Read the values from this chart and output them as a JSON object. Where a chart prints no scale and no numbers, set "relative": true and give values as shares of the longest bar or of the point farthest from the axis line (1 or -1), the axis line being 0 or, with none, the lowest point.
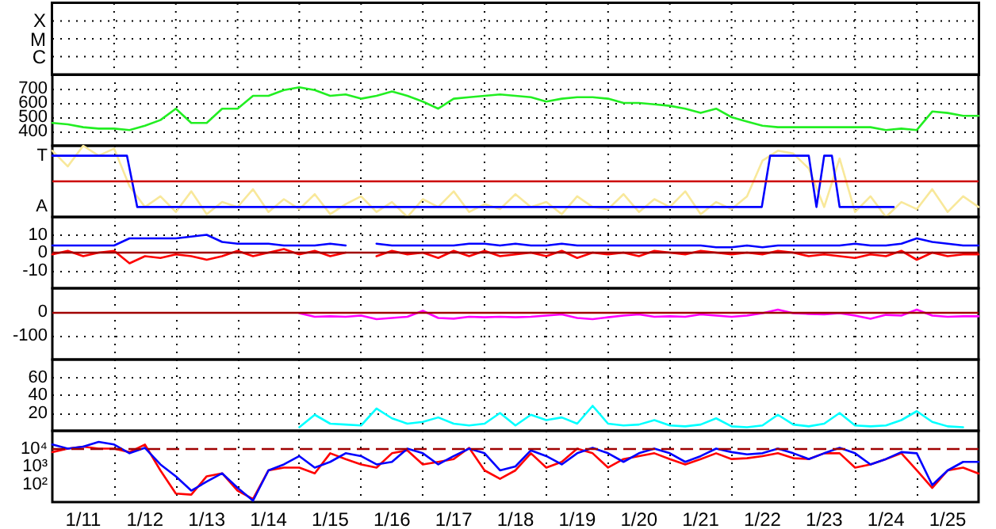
{
  "chart_data": [
    {
      "type": "other",
      "annotations": [
        "X",
        "M",
        "C"
      ]
    },
    {
      "type": "line",
      "x": [
        "--01-11T00:00",
        "--01-11T06:00",
        "--01-11T12:00",
        "--01-11T18:00",
        "--01-12T00:00",
        "--01-12T06:00",
        "--01-12T12:00",
        "--01-12T18:00",
        "--01-13T00:00",
        "--01-13T06:00",
        "--01-13T12:00",
        "--01-13T18:00",
        "--01-14T00:00",
        "--01-14T06:00",
        "--01-14T12:00",
        "--01-14T18:00",
        "--01-15T00:00",
        "--01-15T06:00",
        "--01-15T12:00",
        "--01-15T18:00",
        "--01-16T00:00",
        "--01-16T06:00",
        "--01-16T12:00",
        "--01-16T18:00",
        "--01-17T00:00",
        "--01-17T06:00",
        "--01-17T12:00",
        "--01-17T18:00",
        "--01-18T00:00",
        "--01-18T06:00",
        "--01-18T12:00",
        "--01-18T18:00",
        "--01-19T00:00",
        "--01-19T06:00",
        "--01-19T12:00",
        "--01-19T18:00",
        "--01-20T00:00",
        "--01-20T06:00",
        "--01-20T12:00",
        "--01-20T18:00",
        "--01-21T00:00",
        "--01-21T06:00",
        "--01-21T12:00",
        "--01-21T18:00",
        "--01-22T00:00",
        "--01-22T06:00",
        "--01-22T12:00",
        "--01-22T18:00",
        "--01-23T00:00",
        "--01-23T06:00",
        "--01-23T12:00",
        "--01-23T18:00",
        "--01-24T00:00",
        "--01-24T06:00",
        "--01-24T12:00",
        "--01-24T18:00",
        "--01-25T00:00",
        "--01-25T06:00",
        "--01-25T12:00",
        "--01-25T18:00",
        "--01-26T00:00"
      ],
      "series": [
        {
          "color": "#22ee22",
          "values": [
            460,
            450,
            430,
            420,
            420,
            410,
            440,
            480,
            560,
            460,
            460,
            560,
            560,
            650,
            650,
            690,
            710,
            690,
            650,
            660,
            630,
            650,
            680,
            650,
            610,
            560,
            630,
            640,
            650,
            660,
            650,
            640,
            610,
            630,
            640,
            640,
            630,
            600,
            600,
            590,
            580,
            560,
            530,
            560,
            500,
            470,
            440,
            430,
            430,
            430,
            430,
            430,
            430,
            430,
            410,
            420,
            410,
            540,
            530,
            510,
            510
          ]
        }
      ],
      "ylim": [
        300,
        800
      ],
      "yticks": [
        400,
        500,
        600,
        700
      ],
      "xlim": [
        "--01-11",
        "--01-26"
      ],
      "xticks": [
        {
          "value": "--01-12",
          "label": null
        },
        {
          "value": "--01-13",
          "label": null
        },
        {
          "value": "--01-14",
          "label": null
        },
        {
          "value": "--01-15",
          "label": null
        },
        {
          "value": "--01-16",
          "label": null
        },
        {
          "value": "--01-17",
          "label": null
        },
        {
          "value": "--01-18",
          "label": null
        },
        {
          "value": "--01-19",
          "label": null
        },
        {
          "value": "--01-20",
          "label": null
        },
        {
          "value": "--01-21",
          "label": null
        },
        {
          "value": "--01-22",
          "label": null
        },
        {
          "value": "--01-23",
          "label": null
        },
        {
          "value": "--01-24",
          "label": null
        },
        {
          "value": "--01-25",
          "label": null
        }
      ],
      "grid": true,
      "tick_labels": "y"
    },
    {
      "type": "line",
      "relative": true,
      "x": [
        "--01-11T00:00",
        "--01-11T06:00",
        "--01-11T12:00",
        "--01-11T18:00",
        "--01-12T00:00",
        "--01-12T06:00",
        "--01-12T12:00",
        "--01-12T18:00",
        "--01-13T00:00",
        "--01-13T06:00",
        "--01-13T12:00",
        "--01-13T18:00",
        "--01-14T00:00",
        "--01-14T06:00",
        "--01-14T12:00",
        "--01-14T18:00",
        "--01-15T00:00",
        "--01-15T06:00",
        "--01-15T12:00",
        "--01-15T18:00",
        "--01-16T00:00",
        "--01-16T06:00",
        "--01-16T12:00",
        "--01-16T18:00",
        "--01-17T00:00",
        "--01-17T06:00",
        "--01-17T12:00",
        "--01-17T18:00",
        "--01-18T00:00",
        "--01-18T06:00",
        "--01-18T12:00",
        "--01-18T18:00",
        "--01-19T00:00",
        "--01-19T06:00",
        "--01-19T12:00",
        "--01-19T18:00",
        "--01-20T00:00",
        "--01-20T06:00",
        "--01-20T12:00",
        "--01-20T18:00",
        "--01-21T00:00",
        "--01-21T06:00",
        "--01-21T12:00",
        "--01-21T18:00",
        "--01-22T00:00",
        "--01-22T06:00",
        "--01-22T12:00",
        "--01-22T18:00",
        "--01-23T00:00",
        "--01-23T06:00",
        "--01-23T12:00",
        "--01-23T18:00",
        "--01-24T00:00",
        "--01-24T06:00",
        "--01-24T12:00",
        "--01-24T18:00",
        "--01-25T00:00",
        "--01-25T06:00",
        "--01-25T12:00",
        "--01-25T18:00",
        "--01-26T00:00"
      ],
      "series": [
        {
          "color": "#f8e89a",
          "values": [
            0.93,
            0.71,
            1,
            0.86,
            0.96,
            0.43,
            0.14,
            0.29,
            0.07,
            0.36,
            0.04,
            0.21,
            0.14,
            0.39,
            0.07,
            0.25,
            0.11,
            0.32,
            0.04,
            0.18,
            0.29,
            0.07,
            0.21,
            0,
            0.25,
            0.14,
            0.36,
            0.07,
            0.18,
            0.11,
            0.32,
            0.14,
            0.21,
            0.04,
            0.29,
            0.14,
            0.11,
            0.32,
            0.07,
            0.25,
            0.14,
            0.36,
            0.04,
            0.21,
            0.11,
            0.29,
            0.79,
            0.93,
            0.89,
            0.68,
            0.14,
            0.82,
            0.07,
            0.29,
            0,
            0.21,
            0.11,
            0.39,
            0.07,
            0.29,
            0.14
          ]
        },
        {
          "color": "#0000ff",
          "x": [
            "--01-11T00:00",
            "--01-12T05:00",
            "--01-12T09:00",
            "--01-22T11:45",
            "--01-22T15:00",
            "--01-23T06:00",
            "--01-23T09:00",
            "--01-23T12:00",
            "--01-23T15:00",
            "--01-23T18:00",
            "--01-24T15:00"
          ],
          "values": [
            0.86,
            0.86,
            0.14,
            0.14,
            0.86,
            0.86,
            0.14,
            0.86,
            0.86,
            0.14,
            0.14
          ]
        }
      ],
      "ref_lines": [
        {
          "axis": "y",
          "value": 0.5,
          "color": "#cc0000"
        }
      ],
      "annotations": [
        "T",
        "A"
      ],
      "xlim": [
        "--01-11",
        "--01-26"
      ],
      "xticks": [
        {
          "value": "--01-12",
          "label": null
        },
        {
          "value": "--01-13",
          "label": null
        },
        {
          "value": "--01-14",
          "label": null
        },
        {
          "value": "--01-15",
          "label": null
        },
        {
          "value": "--01-16",
          "label": null
        },
        {
          "value": "--01-17",
          "label": null
        },
        {
          "value": "--01-18",
          "label": null
        },
        {
          "value": "--01-19",
          "label": null
        },
        {
          "value": "--01-20",
          "label": null
        },
        {
          "value": "--01-21",
          "label": null
        },
        {
          "value": "--01-22",
          "label": null
        },
        {
          "value": "--01-23",
          "label": null
        },
        {
          "value": "--01-24",
          "label": null
        },
        {
          "value": "--01-25",
          "label": null
        }
      ],
      "grid": "x",
      "tick_labels": false
    },
    {
      "type": "line",
      "x": [
        "--01-11T00:00",
        "--01-11T06:00",
        "--01-11T12:00",
        "--01-11T18:00",
        "--01-12T00:00",
        "--01-12T06:00",
        "--01-12T12:00",
        "--01-12T18:00",
        "--01-13T00:00",
        "--01-13T06:00",
        "--01-13T12:00",
        "--01-13T18:00",
        "--01-14T00:00",
        "--01-14T06:00",
        "--01-14T12:00",
        "--01-14T18:00",
        "--01-15T00:00",
        "--01-15T06:00",
        "--01-15T12:00",
        "--01-15T18:00",
        "--01-16T00:00",
        "--01-16T06:00",
        "--01-16T12:00",
        "--01-16T18:00",
        "--01-17T00:00",
        "--01-17T06:00",
        "--01-17T12:00",
        "--01-17T18:00",
        "--01-18T00:00",
        "--01-18T06:00",
        "--01-18T12:00",
        "--01-18T18:00",
        "--01-19T00:00",
        "--01-19T06:00",
        "--01-19T12:00",
        "--01-19T18:00",
        "--01-20T00:00",
        "--01-20T06:00",
        "--01-20T12:00",
        "--01-20T18:00",
        "--01-21T00:00",
        "--01-21T06:00",
        "--01-21T12:00",
        "--01-21T18:00",
        "--01-22T00:00",
        "--01-22T06:00",
        "--01-22T12:00",
        "--01-22T18:00",
        "--01-23T00:00",
        "--01-23T06:00",
        "--01-23T12:00",
        "--01-23T18:00",
        "--01-24T00:00",
        "--01-24T06:00",
        "--01-24T12:00",
        "--01-24T18:00",
        "--01-25T00:00",
        "--01-25T06:00",
        "--01-25T12:00",
        "--01-25T18:00",
        "--01-26T00:00"
      ],
      "series": [
        {
          "color": "#0000ff",
          "values": [
            4,
            4,
            4,
            4,
            4,
            8,
            8,
            8,
            8,
            9,
            10,
            6,
            5,
            5,
            5,
            4,
            4,
            4,
            5,
            4,
            null,
            5,
            4,
            4,
            4,
            4,
            4,
            5,
            5,
            4,
            5,
            4,
            4,
            5,
            4,
            4,
            4,
            4,
            4,
            4,
            4,
            4,
            4,
            3,
            3,
            4,
            3,
            4,
            4,
            4,
            4,
            4,
            5,
            4,
            4,
            5,
            8,
            6,
            5,
            4,
            4
          ]
        },
        {
          "color": "#ff0000",
          "values": [
            -1,
            1,
            -2,
            0,
            1,
            -6,
            -2,
            -3,
            -1,
            -2,
            -4,
            -2,
            1,
            -2,
            0,
            2,
            -1,
            1,
            -2,
            0,
            null,
            -2,
            1,
            -1,
            0,
            -3,
            1,
            -2,
            1,
            -2,
            -1,
            0,
            -2,
            1,
            -3,
            0,
            -1,
            0,
            -2,
            1,
            0,
            -1,
            1,
            0,
            -1,
            0,
            -1,
            1,
            0,
            -2,
            -1,
            -2,
            -3,
            -1,
            -2,
            1,
            -4,
            0,
            -2,
            -1,
            -1
          ]
        }
      ],
      "ref_lines": [
        {
          "axis": "y",
          "value": 0,
          "color": "#a00000"
        }
      ],
      "ylim": [
        -20,
        20
      ],
      "yticks": [
        -10,
        0,
        10
      ],
      "xlim": [
        "--01-11",
        "--01-26"
      ],
      "xticks": [
        {
          "value": "--01-12",
          "label": null
        },
        {
          "value": "--01-13",
          "label": null
        },
        {
          "value": "--01-14",
          "label": null
        },
        {
          "value": "--01-15",
          "label": null
        },
        {
          "value": "--01-16",
          "label": null
        },
        {
          "value": "--01-17",
          "label": null
        },
        {
          "value": "--01-18",
          "label": null
        },
        {
          "value": "--01-19",
          "label": null
        },
        {
          "value": "--01-20",
          "label": null
        },
        {
          "value": "--01-21",
          "label": null
        },
        {
          "value": "--01-22",
          "label": null
        },
        {
          "value": "--01-23",
          "label": null
        },
        {
          "value": "--01-24",
          "label": null
        },
        {
          "value": "--01-25",
          "label": null
        }
      ],
      "grid": true,
      "tick_labels": "y"
    },
    {
      "type": "line",
      "x": [
        "--01-15T00:00",
        "--01-15T06:00",
        "--01-15T12:00",
        "--01-15T18:00",
        "--01-16T00:00",
        "--01-16T06:00",
        "--01-16T12:00",
        "--01-16T18:00",
        "--01-17T00:00",
        "--01-17T06:00",
        "--01-17T12:00",
        "--01-17T18:00",
        "--01-18T00:00",
        "--01-18T06:00",
        "--01-18T12:00",
        "--01-18T18:00",
        "--01-19T00:00",
        "--01-19T06:00",
        "--01-19T12:00",
        "--01-19T18:00",
        "--01-20T00:00",
        "--01-20T06:00",
        "--01-20T12:00",
        "--01-20T18:00",
        "--01-21T00:00",
        "--01-21T06:00",
        "--01-21T12:00",
        "--01-21T18:00",
        "--01-22T00:00",
        "--01-22T06:00",
        "--01-22T12:00",
        "--01-22T18:00",
        "--01-23T00:00",
        "--01-23T06:00",
        "--01-23T12:00",
        "--01-23T18:00",
        "--01-24T00:00",
        "--01-24T06:00",
        "--01-24T12:00",
        "--01-24T18:00",
        "--01-25T00:00",
        "--01-25T06:00",
        "--01-25T12:00",
        "--01-25T18:00",
        "--01-26T00:00"
      ],
      "series": [
        {
          "color": "#ff00ff",
          "values": [
            -5,
            -20,
            -18,
            -20,
            -15,
            -30,
            -25,
            -20,
            5,
            -25,
            -28,
            -20,
            -22,
            -20,
            -22,
            -20,
            -15,
            -10,
            -25,
            -30,
            -22,
            -15,
            -10,
            -20,
            -18,
            -20,
            -10,
            -15,
            -20,
            -15,
            -5,
            10,
            -5,
            -8,
            -10,
            -5,
            -15,
            -28,
            -12,
            -15,
            10,
            -15,
            -20,
            -18,
            -18
          ]
        }
      ],
      "ref_lines": [
        {
          "axis": "y",
          "value": 0,
          "color": "#a00000"
        }
      ],
      "ylim": [
        -200,
        100
      ],
      "yticks": [
        -100,
        0
      ],
      "xlim": [
        "--01-11",
        "--01-26"
      ],
      "xticks": [
        {
          "value": "--01-12",
          "label": null
        },
        {
          "value": "--01-13",
          "label": null
        },
        {
          "value": "--01-14",
          "label": null
        },
        {
          "value": "--01-15",
          "label": null
        },
        {
          "value": "--01-16",
          "label": null
        },
        {
          "value": "--01-17",
          "label": null
        },
        {
          "value": "--01-18",
          "label": null
        },
        {
          "value": "--01-19",
          "label": null
        },
        {
          "value": "--01-20",
          "label": null
        },
        {
          "value": "--01-21",
          "label": null
        },
        {
          "value": "--01-22",
          "label": null
        },
        {
          "value": "--01-23",
          "label": null
        },
        {
          "value": "--01-24",
          "label": null
        },
        {
          "value": "--01-25",
          "label": null
        }
      ],
      "grid": true,
      "tick_labels": "y"
    },
    {
      "type": "line",
      "x": [
        "--01-15T00:00",
        "--01-15T06:00",
        "--01-15T12:00",
        "--01-15T18:00",
        "--01-16T00:00",
        "--01-16T06:00",
        "--01-16T12:00",
        "--01-16T18:00",
        "--01-17T00:00",
        "--01-17T06:00",
        "--01-17T12:00",
        "--01-17T18:00",
        "--01-18T00:00",
        "--01-18T06:00",
        "--01-18T12:00",
        "--01-18T18:00",
        "--01-19T00:00",
        "--01-19T06:00",
        "--01-19T12:00",
        "--01-19T18:00",
        "--01-20T00:00",
        "--01-20T06:00",
        "--01-20T12:00",
        "--01-20T18:00",
        "--01-21T00:00",
        "--01-21T06:00",
        "--01-21T12:00",
        "--01-21T18:00",
        "--01-22T00:00",
        "--01-22T06:00",
        "--01-22T12:00",
        "--01-22T18:00",
        "--01-23T00:00",
        "--01-23T06:00",
        "--01-23T12:00",
        "--01-23T18:00",
        "--01-24T00:00",
        "--01-24T06:00",
        "--01-24T12:00",
        "--01-24T18:00",
        "--01-25T00:00",
        "--01-25T06:00",
        "--01-25T12:00",
        "--01-25T18:00"
      ],
      "series": [
        {
          "color": "#00ffff",
          "values": [
            4,
            18,
            8,
            7,
            6,
            25,
            14,
            8,
            10,
            15,
            8,
            6,
            8,
            20,
            6,
            18,
            12,
            15,
            8,
            28,
            8,
            6,
            7,
            12,
            6,
            5,
            7,
            14,
            5,
            4,
            6,
            18,
            7,
            5,
            8,
            20,
            6,
            5,
            6,
            12,
            22,
            10,
            5,
            4
          ]
        }
      ],
      "ylim": [
        0,
        80
      ],
      "yticks": [
        20,
        40,
        60
      ],
      "xlim": [
        "--01-11",
        "--01-26"
      ],
      "xticks": [
        {
          "value": "--01-12",
          "label": null
        },
        {
          "value": "--01-13",
          "label": null
        },
        {
          "value": "--01-14",
          "label": null
        },
        {
          "value": "--01-15",
          "label": null
        },
        {
          "value": "--01-16",
          "label": null
        },
        {
          "value": "--01-17",
          "label": null
        },
        {
          "value": "--01-18",
          "label": null
        },
        {
          "value": "--01-19",
          "label": null
        },
        {
          "value": "--01-20",
          "label": null
        },
        {
          "value": "--01-21",
          "label": null
        },
        {
          "value": "--01-22",
          "label": null
        },
        {
          "value": "--01-23",
          "label": null
        },
        {
          "value": "--01-24",
          "label": null
        },
        {
          "value": "--01-25",
          "label": null
        }
      ],
      "grid": true,
      "tick_labels": "y"
    },
    {
      "type": "line",
      "x": [
        "--01-11T00:00",
        "--01-11T06:00",
        "--01-11T12:00",
        "--01-11T18:00",
        "--01-12T00:00",
        "--01-12T06:00",
        "--01-12T12:00",
        "--01-12T18:00",
        "--01-13T00:00",
        "--01-13T06:00",
        "--01-13T12:00",
        "--01-13T18:00",
        "--01-14T00:00",
        "--01-14T06:00",
        "--01-14T12:00",
        "--01-14T18:00",
        "--01-15T00:00",
        "--01-15T06:00",
        "--01-15T12:00",
        "--01-15T18:00",
        "--01-16T00:00",
        "--01-16T06:00",
        "--01-16T12:00",
        "--01-16T18:00",
        "--01-17T00:00",
        "--01-17T06:00",
        "--01-17T12:00",
        "--01-17T18:00",
        "--01-18T00:00",
        "--01-18T06:00",
        "--01-18T12:00",
        "--01-18T18:00",
        "--01-19T00:00",
        "--01-19T06:00",
        "--01-19T12:00",
        "--01-19T18:00",
        "--01-20T00:00",
        "--01-20T06:00",
        "--01-20T12:00",
        "--01-20T18:00",
        "--01-21T00:00",
        "--01-21T06:00",
        "--01-21T12:00",
        "--01-21T18:00",
        "--01-22T00:00",
        "--01-22T06:00",
        "--01-22T12:00",
        "--01-22T18:00",
        "--01-23T00:00",
        "--01-23T06:00",
        "--01-23T12:00",
        "--01-23T18:00",
        "--01-24T00:00",
        "--01-24T06:00",
        "--01-24T12:00",
        "--01-24T18:00",
        "--01-25T00:00",
        "--01-25T06:00",
        "--01-25T12:00",
        "--01-25T18:00",
        "--01-26T00:00"
      ],
      "series": [
        {
          "color": "#ff0000",
          "values": [
            6400,
            10000,
            13000,
            10000,
            10000,
            6400,
            17000,
            600,
            30,
            26,
            280,
            410,
            44,
            15,
            600,
            860,
            860,
            410,
            5500,
            2600,
            1300,
            860,
            5500,
            8000,
            1300,
            1800,
            2600,
            11000,
            600,
            200,
            600,
            5500,
            860,
            1800,
            10000,
            5500,
            860,
            2600,
            3800,
            5500,
            2600,
            1300,
            2600,
            5500,
            2600,
            2900,
            3800,
            5500,
            2900,
            2600,
            5500,
            5500,
            860,
            1300,
            2600,
            5500,
            600,
            63,
            600,
            860,
            400
          ]
        },
        {
          "color": "#0000ff",
          "values": [
            17000,
            10000,
            13000,
            24000,
            17000,
            5500,
            11000,
            1300,
            280,
            44,
            140,
            410,
            63,
            12,
            600,
            1300,
            3800,
            860,
            1800,
            5500,
            3800,
            1300,
            1800,
            10000,
            5500,
            1300,
            3800,
            10000,
            5500,
            600,
            1000,
            8000,
            3800,
            1300,
            5500,
            11000,
            5500,
            1800,
            5500,
            10000,
            5500,
            1800,
            3800,
            10000,
            6400,
            4800,
            5500,
            10000,
            5500,
            2600,
            5500,
            11000,
            5500,
            1300,
            2600,
            6400,
            5500,
            90,
            600,
            1800,
            1800
          ]
        }
      ],
      "ref_lines": [
        {
          "axis": "y",
          "value": 10000,
          "color": "#a00000",
          "line_style": "dashed"
        }
      ],
      "log": "y",
      "ylim": [
        10,
        100000
      ],
      "yticks": [
        {
          "value": 100,
          "label": "10²"
        },
        {
          "value": 1000,
          "label": "10³"
        },
        {
          "value": 10000,
          "label": "10⁴"
        }
      ],
      "xlim": [
        "--01-11",
        "--01-26"
      ],
      "xticks": [
        {
          "value": "--01-11T12:00",
          "label": "1/11"
        },
        {
          "value": "--01-12",
          "label": null
        },
        {
          "value": "--01-12T12:00",
          "label": "1/12"
        },
        {
          "value": "--01-13",
          "label": null
        },
        {
          "value": "--01-13T12:00",
          "label": "1/13"
        },
        {
          "value": "--01-14",
          "label": null
        },
        {
          "value": "--01-14T12:00",
          "label": "1/14"
        },
        {
          "value": "--01-15",
          "label": null
        },
        {
          "value": "--01-15T12:00",
          "label": "1/15"
        },
        {
          "value": "--01-16",
          "label": null
        },
        {
          "value": "--01-16T12:00",
          "label": "1/16"
        },
        {
          "value": "--01-17",
          "label": null
        },
        {
          "value": "--01-17T12:00",
          "label": "1/17"
        },
        {
          "value": "--01-18",
          "label": null
        },
        {
          "value": "--01-18T12:00",
          "label": "1/18"
        },
        {
          "value": "--01-19",
          "label": null
        },
        {
          "value": "--01-19T12:00",
          "label": "1/19"
        },
        {
          "value": "--01-20",
          "label": null
        },
        {
          "value": "--01-20T12:00",
          "label": "1/20"
        },
        {
          "value": "--01-21",
          "label": null
        },
        {
          "value": "--01-21T12:00",
          "label": "1/21"
        },
        {
          "value": "--01-22",
          "label": null
        },
        {
          "value": "--01-22T12:00",
          "label": "1/22"
        },
        {
          "value": "--01-23",
          "label": null
        },
        {
          "value": "--01-23T12:00",
          "label": "1/23"
        },
        {
          "value": "--01-24",
          "label": null
        },
        {
          "value": "--01-24T12:00",
          "label": "1/24"
        },
        {
          "value": "--01-25",
          "label": null
        },
        {
          "value": "--01-25T12:00",
          "label": "1/25"
        }
      ],
      "grid": "x"
    }
  ]
}
